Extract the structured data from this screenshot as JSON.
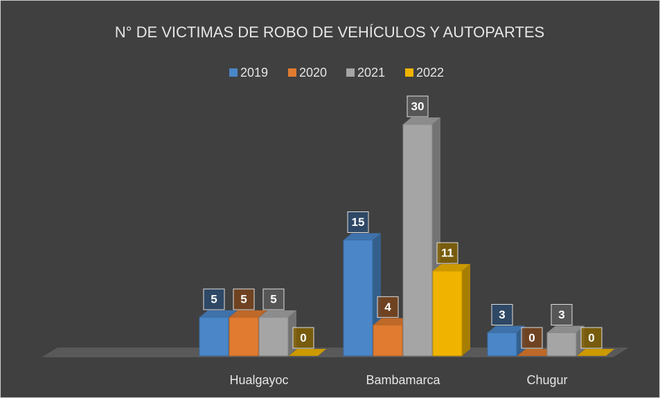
{
  "chart_data": {
    "type": "bar3d",
    "title": "N° DE VICTIMAS DE ROBO DE VEHÍCULOS Y AUTOPARTES",
    "categories": [
      "Hualgayoc",
      "Bambamarca",
      "Chugur"
    ],
    "series": [
      {
        "name": "2019",
        "color": "#4a86c8",
        "values": [
          5,
          15,
          3
        ]
      },
      {
        "name": "2020",
        "color": "#e07b30",
        "values": [
          5,
          4,
          0
        ]
      },
      {
        "name": "2021",
        "color": "#a5a5a5",
        "values": [
          5,
          30,
          3
        ]
      },
      {
        "name": "2022",
        "color": "#f0b400",
        "values": [
          0,
          11,
          0
        ]
      }
    ],
    "legend": "top"
  }
}
